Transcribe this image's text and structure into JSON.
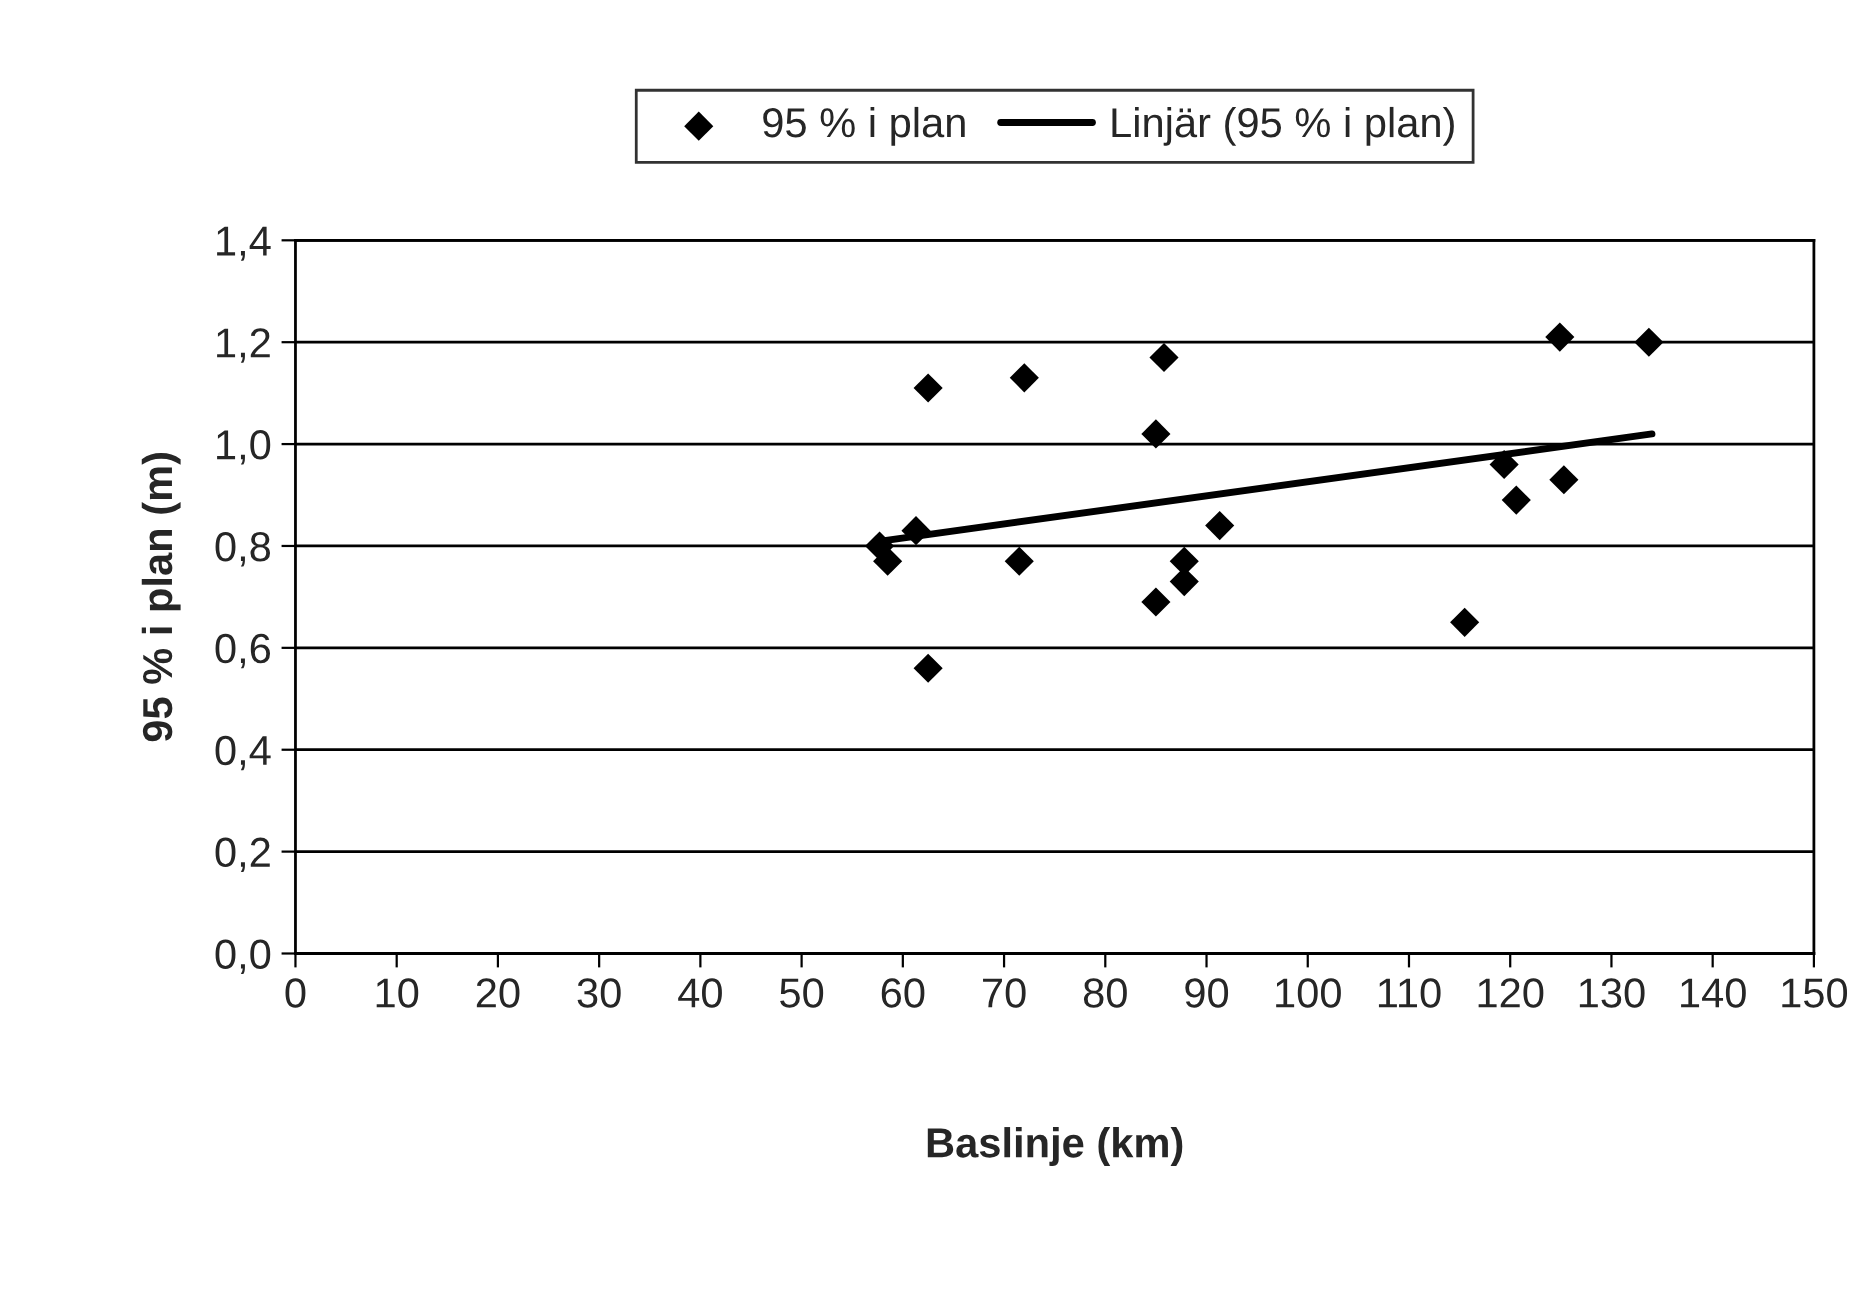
{
  "chart_data": {
    "type": "scatter",
    "xlabel": "Baslinje (km)",
    "ylabel": "95 % i plan (m)",
    "xlim": [
      0,
      150
    ],
    "xticks": [
      0,
      10,
      20,
      30,
      40,
      50,
      60,
      70,
      80,
      90,
      100,
      110,
      120,
      130,
      140,
      150
    ],
    "ylim": [
      0,
      1.4
    ],
    "yticks": [
      {
        "value": 0,
        "label": "0,0"
      },
      {
        "value": 0.2,
        "label": "0,2"
      },
      {
        "value": 0.4,
        "label": "0,4"
      },
      {
        "value": 0.6,
        "label": "0,6"
      },
      {
        "value": 0.8,
        "label": "0,8"
      },
      {
        "value": 1.0,
        "label": "1,0"
      },
      {
        "value": 1.2,
        "label": "1,2"
      },
      {
        "value": 1.4,
        "label": "1,4"
      }
    ],
    "grid": "y",
    "legend": "top",
    "series": [
      {
        "name": "95 % i plan",
        "marker": "diamond",
        "color": "#000000",
        "x": [
          57.7,
          58.5,
          61.3,
          62.5,
          62.5,
          72.0,
          71.5,
          85.8,
          85.0,
          85.0,
          87.8,
          87.8,
          91.3,
          124.9,
          133.7,
          119.4,
          120.6,
          125.3,
          115.5
        ],
        "values": [
          0.8,
          0.77,
          0.83,
          1.11,
          0.56,
          1.13,
          0.77,
          1.17,
          1.02,
          0.69,
          0.77,
          0.73,
          0.84,
          1.21,
          1.2,
          0.96,
          0.89,
          0.93,
          0.65
        ]
      },
      {
        "name": "Linjär (95 % i plan)",
        "type": "line",
        "marker": "none",
        "color": "#000000",
        "x": [
          58,
          134
        ],
        "values": [
          0.81,
          1.02
        ]
      }
    ]
  }
}
